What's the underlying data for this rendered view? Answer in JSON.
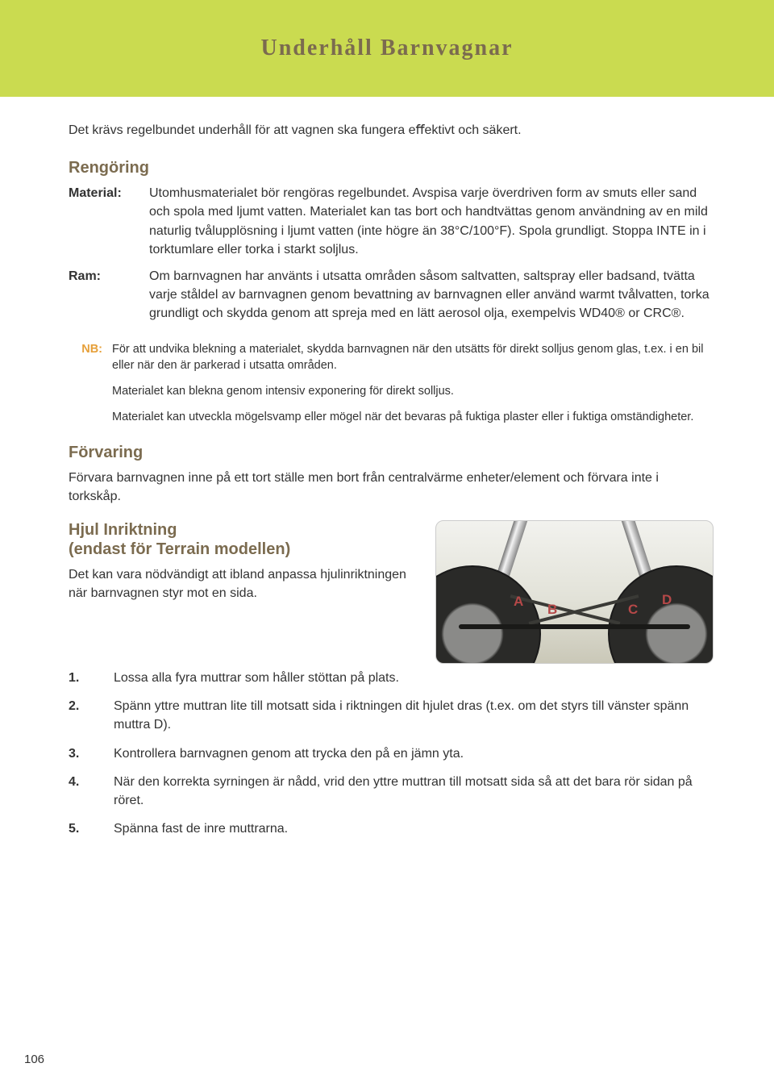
{
  "header": {
    "title": "Underhåll Barnvagnar",
    "band_color": "#cadb50",
    "title_color": "#7b6b4f",
    "title_fontsize": 28
  },
  "intro": "Det krävs regelbundet underhåll för att vagnen ska fungera eﬀektivt och säkert.",
  "cleaning": {
    "heading": "Rengöring",
    "rows": [
      {
        "label": "Material:",
        "text": "Utomhusmaterialet bör rengöras regelbundet. Avspisa varje överdriven form av smuts eller sand och spola med ljumt vatten. Materialet kan tas bort och handtvättas genom användning av en mild naturlig tvålupplösning i ljumt vatten (inte högre än 38°C/100°F). Spola grundligt. Stoppa INTE in i torktumlare eller torka i starkt soljlus."
      },
      {
        "label": "Ram:",
        "text": "Om barnvagnen har använts i utsatta områden såsom saltvatten, saltspray eller badsand, tvätta varje ståldel av barnvagnen genom bevattning av barnvagnen eller använd warmt tvålvatten, torka grundligt och skydda genom att spreja med en lätt aerosol olja, exempelvis WD40® or CRC®."
      }
    ]
  },
  "nb": {
    "label": "NB:",
    "label_color": "#e6a03a",
    "items": [
      "För att undvika blekning a materialet, skydda barnvagnen när den utsätts för direkt solljus genom glas, t.ex. i en bil eller när den är parkerad i utsatta områden.",
      "Materialet kan blekna genom intensiv exponering för direkt solljus.",
      "Materialet kan utveckla mögelsvamp eller mögel när det bevaras på fuktiga plaster eller i fuktiga omständigheter."
    ]
  },
  "storage": {
    "heading": "Förvaring",
    "text": "Förvara barnvagnen inne på ett tort ställe men bort från centralvärme enheter/element och förvara inte i torkskåp."
  },
  "wheel": {
    "heading_line1": "Hjul Inriktning",
    "heading_line2": "(endast för Terrain modellen)",
    "intro": "Det kan vara nödvändigt att ibland anpassa hjulinriktningen när barnvagnen styr mot en sida.",
    "image": {
      "labels": [
        "A",
        "B",
        "C",
        "D"
      ],
      "label_color": "#b54848",
      "border_color": "#cccccc",
      "bg_gradient": [
        "#f2f2ee",
        "#e2e2d8",
        "#cac8b8"
      ]
    },
    "steps": [
      "Lossa alla fyra muttrar som håller stöttan på plats.",
      "Spänn yttre muttran lite till motsatt sida i riktningen dit hjulet dras (t.ex. om det styrs till vänster spänn muttra D).",
      "Kontrollera barnvagnen genom att trycka den på en jämn yta.",
      "När den korrekta syrningen är nådd, vrid den yttre muttran till motsatt sida så att det bara rör sidan på röret.",
      "Spänna fast de inre muttrarna."
    ]
  },
  "page_number": "106",
  "typography": {
    "body_fontsize": 16,
    "small_fontsize": 14.5,
    "heading_color": "#7b6b4f",
    "text_color": "#333333"
  }
}
